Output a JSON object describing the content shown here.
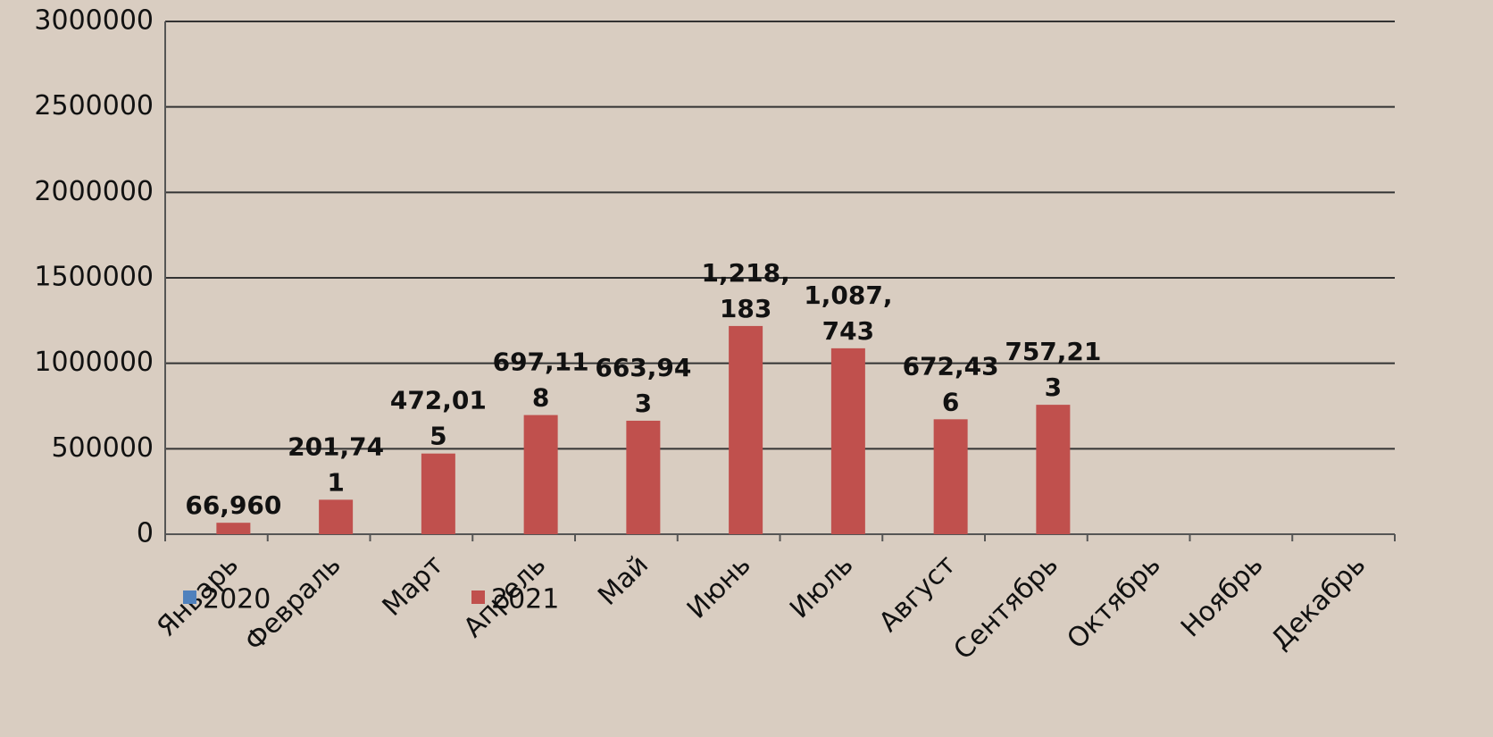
{
  "chart_data": {
    "type": "bar",
    "categories": [
      "Январь",
      "Февраль",
      "Март",
      "Апрель",
      "Май",
      "Июнь",
      "Июль",
      "Август",
      "Сентябрь",
      "Октябрь",
      "Ноябрь",
      "Декабрь"
    ],
    "series": [
      {
        "name": "2020",
        "color": "#4f81bd",
        "values": [
          null,
          null,
          null,
          null,
          null,
          null,
          null,
          null,
          null,
          null,
          null,
          null
        ]
      },
      {
        "name": "2021",
        "color": "#c0504d",
        "values": [
          66960,
          201741,
          472015,
          697118,
          663943,
          1218183,
          1087743,
          672436,
          757213,
          null,
          null,
          null
        ],
        "value_labels": [
          "66,960",
          "201,741",
          "472,015",
          "697,118",
          "663,943",
          "1,218,183",
          "1,087,743",
          "672,436",
          "757,213",
          null,
          null,
          null
        ]
      }
    ],
    "ylim": [
      0,
      3000000
    ],
    "yticks": [
      0,
      500000,
      1000000,
      1500000,
      2000000,
      2500000,
      3000000
    ],
    "grid": true
  }
}
